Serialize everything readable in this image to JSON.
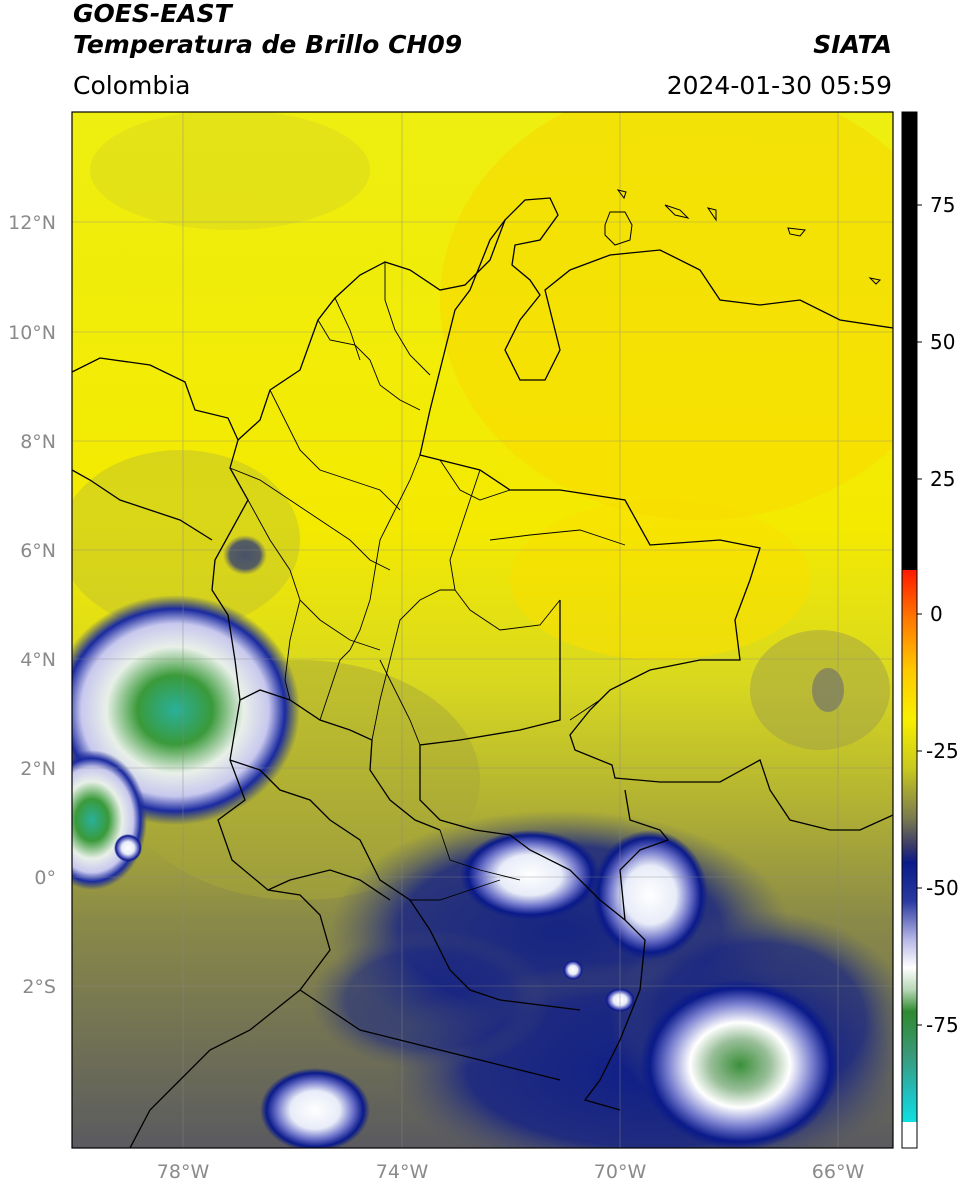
{
  "header": {
    "line1": "GOES-EAST",
    "line2": "Temperatura de Brillo CH09",
    "region": "Colombia",
    "agency": "SIATA",
    "datetime": "2024-01-30 05:59"
  },
  "map": {
    "lat_labels": [
      "12°N",
      "10°N",
      "8°N",
      "6°N",
      "4°N",
      "2°N",
      "0°",
      "2°S"
    ],
    "lon_labels": [
      "78°W",
      "74°W",
      "70°W",
      "66°W"
    ]
  },
  "colorbar": {
    "ticks": [
      "75",
      "50",
      "25",
      "0",
      "-25",
      "-50",
      "-75"
    ],
    "colors": {
      "black": "#000000",
      "red": "#ff1a00",
      "orange": "#ff8c00",
      "yellow": "#f8f000",
      "olive": "#9a9a30",
      "navy": "#0a1a8a",
      "white": "#ffffff",
      "green": "#2f8a2f",
      "cyan": "#10e0e0"
    }
  }
}
